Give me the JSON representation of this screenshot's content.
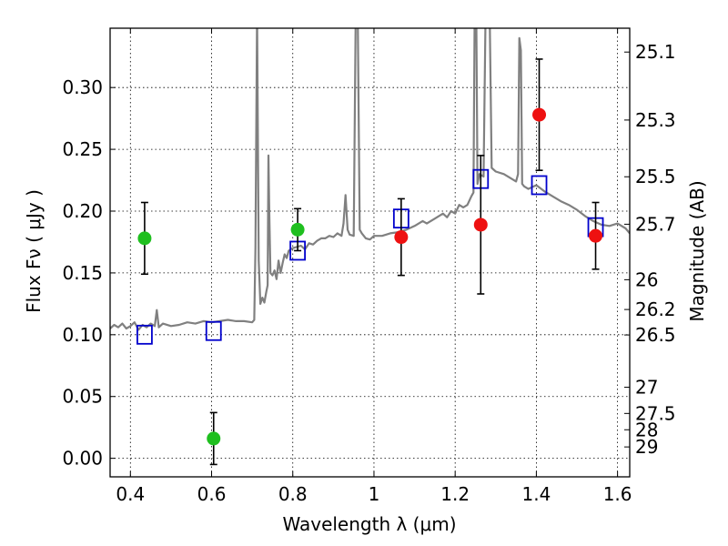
{
  "chart_data": {
    "type": "scatter",
    "xlabel": "Wavelength  λ (μm)",
    "ylabel": "Flux  Fν ( μJy )",
    "ylabel_right": "Magnitude (AB)",
    "xlim": [
      0.35,
      1.63
    ],
    "ylim": [
      -0.015,
      0.348
    ],
    "grid": true,
    "x_ticks": [
      {
        "value": 0.4,
        "label": "0.4"
      },
      {
        "value": 0.6,
        "label": "0.6"
      },
      {
        "value": 0.8,
        "label": "0.8"
      },
      {
        "value": 1.0,
        "label": "1"
      },
      {
        "value": 1.2,
        "label": "1.2"
      },
      {
        "value": 1.4,
        "label": "1.4"
      },
      {
        "value": 1.6,
        "label": "1.6"
      }
    ],
    "y_ticks": [
      {
        "value": 0.0,
        "label": "0.00"
      },
      {
        "value": 0.05,
        "label": "0.05"
      },
      {
        "value": 0.1,
        "label": "0.10"
      },
      {
        "value": 0.15,
        "label": "0.15"
      },
      {
        "value": 0.2,
        "label": "0.20"
      },
      {
        "value": 0.25,
        "label": "0.25"
      },
      {
        "value": 0.3,
        "label": "0.30"
      }
    ],
    "right_ticks": [
      {
        "flux": 0.3287,
        "label": "25.1"
      },
      {
        "flux": 0.2737,
        "label": "25.3"
      },
      {
        "flux": 0.2278,
        "label": "25.5"
      },
      {
        "flux": 0.1894,
        "label": "25.7"
      },
      {
        "flux": 0.1445,
        "label": "26"
      },
      {
        "flux": 0.1204,
        "label": "26.2"
      },
      {
        "flux": 0.0998,
        "label": "26.5"
      },
      {
        "flux": 0.0575,
        "label": "27"
      },
      {
        "flux": 0.0363,
        "label": "27.5"
      },
      {
        "flux": 0.0231,
        "label": "28"
      },
      {
        "flux": 0.0092,
        "label": "29"
      }
    ],
    "colors": {
      "model": "#808080",
      "green_points": "#1fbf1f",
      "red_points": "#ee1111",
      "model_photometry": "#0000cc",
      "errorbar": "#000000"
    },
    "series": [
      {
        "type": "line",
        "points": [
          [
            0.35,
            0.105
          ],
          [
            0.36,
            0.108
          ],
          [
            0.37,
            0.106
          ],
          [
            0.38,
            0.109
          ],
          [
            0.39,
            0.105
          ],
          [
            0.4,
            0.107
          ],
          [
            0.41,
            0.11
          ],
          [
            0.42,
            0.104
          ],
          [
            0.43,
            0.108
          ],
          [
            0.44,
            0.106
          ],
          [
            0.45,
            0.109
          ],
          [
            0.46,
            0.107
          ],
          [
            0.465,
            0.12
          ],
          [
            0.47,
            0.106
          ],
          [
            0.48,
            0.109
          ],
          [
            0.5,
            0.107
          ],
          [
            0.52,
            0.108
          ],
          [
            0.54,
            0.11
          ],
          [
            0.56,
            0.109
          ],
          [
            0.58,
            0.111
          ],
          [
            0.6,
            0.11
          ],
          [
            0.62,
            0.111
          ],
          [
            0.64,
            0.112
          ],
          [
            0.66,
            0.111
          ],
          [
            0.68,
            0.111
          ],
          [
            0.7,
            0.11
          ],
          [
            0.705,
            0.112
          ],
          [
            0.708,
            0.17
          ],
          [
            0.712,
            0.36
          ],
          [
            0.716,
            0.16
          ],
          [
            0.72,
            0.125
          ],
          [
            0.725,
            0.13
          ],
          [
            0.73,
            0.126
          ],
          [
            0.735,
            0.135
          ],
          [
            0.738,
            0.14
          ],
          [
            0.74,
            0.245
          ],
          [
            0.742,
            0.2
          ],
          [
            0.745,
            0.15
          ],
          [
            0.75,
            0.148
          ],
          [
            0.755,
            0.152
          ],
          [
            0.76,
            0.145
          ],
          [
            0.765,
            0.16
          ],
          [
            0.77,
            0.15
          ],
          [
            0.775,
            0.158
          ],
          [
            0.78,
            0.165
          ],
          [
            0.785,
            0.162
          ],
          [
            0.79,
            0.168
          ],
          [
            0.8,
            0.17
          ],
          [
            0.82,
            0.172
          ],
          [
            0.83,
            0.169
          ],
          [
            0.84,
            0.174
          ],
          [
            0.85,
            0.173
          ],
          [
            0.86,
            0.176
          ],
          [
            0.87,
            0.178
          ],
          [
            0.88,
            0.178
          ],
          [
            0.89,
            0.18
          ],
          [
            0.9,
            0.179
          ],
          [
            0.91,
            0.182
          ],
          [
            0.92,
            0.18
          ],
          [
            0.925,
            0.19
          ],
          [
            0.93,
            0.213
          ],
          [
            0.935,
            0.185
          ],
          [
            0.94,
            0.181
          ],
          [
            0.95,
            0.18
          ],
          [
            0.955,
            0.36
          ],
          [
            0.96,
            0.36
          ],
          [
            0.965,
            0.185
          ],
          [
            0.97,
            0.182
          ],
          [
            0.98,
            0.178
          ],
          [
            0.99,
            0.177
          ],
          [
            1.0,
            0.18
          ],
          [
            1.02,
            0.18
          ],
          [
            1.04,
            0.182
          ],
          [
            1.06,
            0.183
          ],
          [
            1.08,
            0.185
          ],
          [
            1.1,
            0.188
          ],
          [
            1.12,
            0.192
          ],
          [
            1.13,
            0.19
          ],
          [
            1.15,
            0.194
          ],
          [
            1.17,
            0.198
          ],
          [
            1.18,
            0.195
          ],
          [
            1.19,
            0.2
          ],
          [
            1.2,
            0.198
          ],
          [
            1.21,
            0.205
          ],
          [
            1.22,
            0.203
          ],
          [
            1.23,
            0.205
          ],
          [
            1.24,
            0.212
          ],
          [
            1.245,
            0.215
          ],
          [
            1.248,
            0.36
          ],
          [
            1.252,
            0.36
          ],
          [
            1.255,
            0.222
          ],
          [
            1.26,
            0.23
          ],
          [
            1.27,
            0.228
          ],
          [
            1.275,
            0.36
          ],
          [
            1.285,
            0.36
          ],
          [
            1.29,
            0.235
          ],
          [
            1.3,
            0.232
          ],
          [
            1.32,
            0.23
          ],
          [
            1.34,
            0.226
          ],
          [
            1.35,
            0.224
          ],
          [
            1.355,
            0.23
          ],
          [
            1.358,
            0.34
          ],
          [
            1.362,
            0.33
          ],
          [
            1.365,
            0.222
          ],
          [
            1.37,
            0.22
          ],
          [
            1.38,
            0.218
          ],
          [
            1.4,
            0.221
          ],
          [
            1.42,
            0.216
          ],
          [
            1.44,
            0.212
          ],
          [
            1.46,
            0.208
          ],
          [
            1.48,
            0.205
          ],
          [
            1.5,
            0.201
          ],
          [
            1.52,
            0.196
          ],
          [
            1.54,
            0.192
          ],
          [
            1.56,
            0.189
          ],
          [
            1.58,
            0.188
          ],
          [
            1.6,
            0.19
          ],
          [
            1.62,
            0.186
          ],
          [
            1.63,
            0.182
          ]
        ]
      },
      {
        "type": "scatter",
        "points": [
          {
            "x": 0.435,
            "y": 0.178,
            "err": 0.029
          },
          {
            "x": 0.605,
            "y": 0.016,
            "err": 0.021
          },
          {
            "x": 0.812,
            "y": 0.185,
            "err": 0.017
          }
        ]
      },
      {
        "type": "scatter",
        "points": [
          {
            "x": 1.067,
            "y": 0.179,
            "err": 0.031
          },
          {
            "x": 1.263,
            "y": 0.189,
            "err": 0.056
          },
          {
            "x": 1.407,
            "y": 0.278,
            "err": 0.045
          },
          {
            "x": 1.546,
            "y": 0.18,
            "err": 0.027
          }
        ]
      },
      {
        "type": "scatter",
        "points": [
          {
            "x": 0.435,
            "y": 0.1
          },
          {
            "x": 0.605,
            "y": 0.103
          },
          {
            "x": 0.812,
            "y": 0.168
          },
          {
            "x": 1.067,
            "y": 0.194
          },
          {
            "x": 1.263,
            "y": 0.226
          },
          {
            "x": 1.407,
            "y": 0.221
          },
          {
            "x": 1.546,
            "y": 0.187
          }
        ]
      }
    ]
  }
}
